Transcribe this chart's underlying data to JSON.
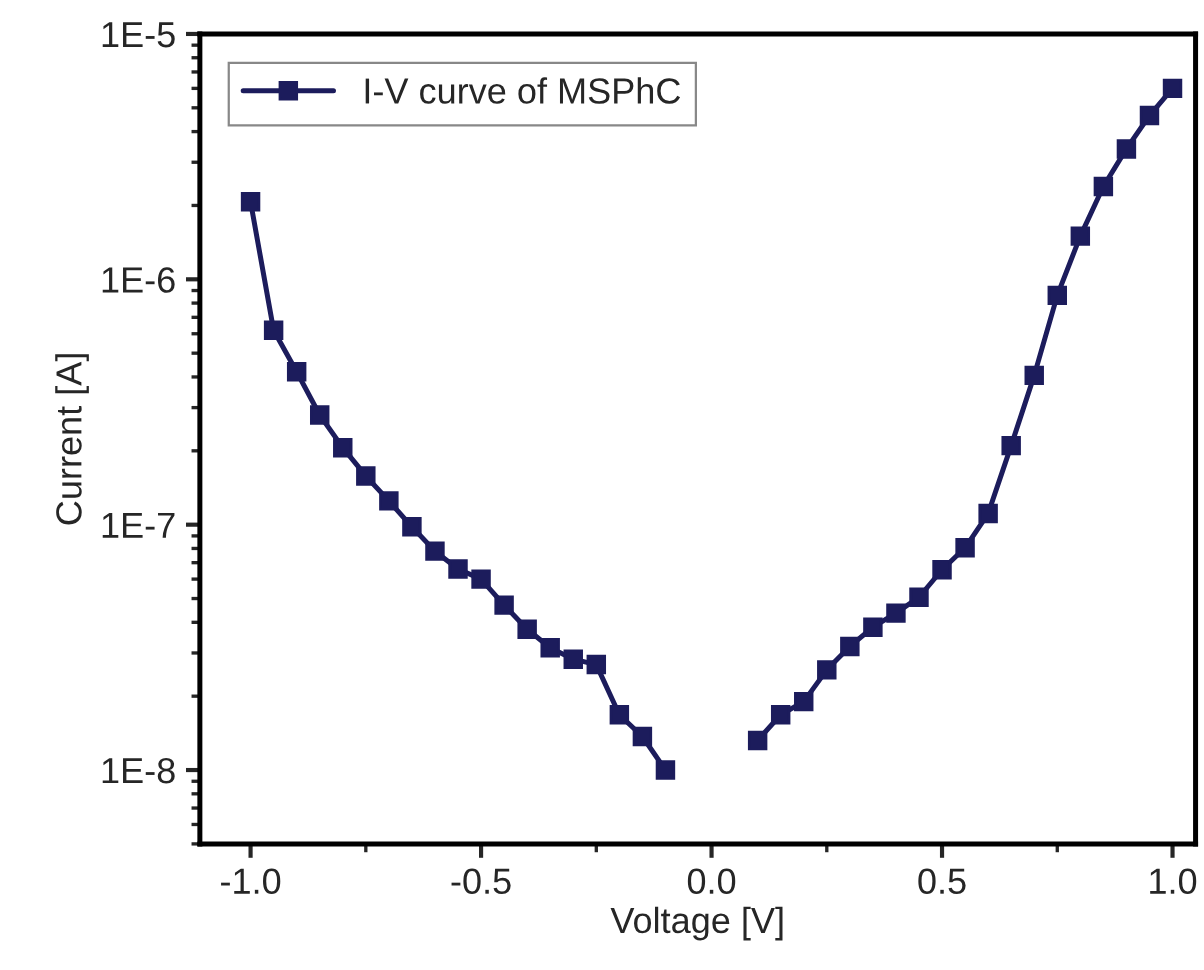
{
  "chart_data": {
    "type": "line",
    "xlabel": "Voltage [V]",
    "ylabel": "Current [A]",
    "x": [
      -1.0,
      -0.95,
      -0.9,
      -0.85,
      -0.8,
      -0.75,
      -0.7,
      -0.65,
      -0.6,
      -0.55,
      -0.5,
      -0.45,
      -0.4,
      -0.35,
      -0.3,
      -0.25,
      -0.2,
      -0.15,
      -0.1,
      0.0,
      0.1,
      0.15,
      0.2,
      0.25,
      0.3,
      0.35,
      0.4,
      0.45,
      0.5,
      0.55,
      0.6,
      0.65,
      0.7,
      0.75,
      0.8,
      0.85,
      0.9,
      0.95,
      1.0
    ],
    "series": [
      {
        "name": "I-V curve of MSPhC",
        "color": "#1c1c5c",
        "values": [
          2.07e-06,
          6.2e-07,
          4.2e-07,
          2.8e-07,
          2.06e-07,
          1.58e-07,
          1.25e-07,
          9.8e-08,
          7.8e-08,
          6.6e-08,
          6e-08,
          4.7e-08,
          3.75e-08,
          3.15e-08,
          2.83e-08,
          2.69e-08,
          1.68e-08,
          1.37e-08,
          1e-08,
          null,
          1.32e-08,
          1.68e-08,
          1.9e-08,
          2.56e-08,
          3.19e-08,
          3.82e-08,
          4.36e-08,
          5.06e-08,
          6.55e-08,
          8.05e-08,
          1.11e-07,
          2.1e-07,
          4.06e-07,
          8.6e-07,
          1.5e-06,
          2.39e-06,
          3.4e-06,
          4.65e-06,
          6e-06
        ]
      }
    ],
    "log": "y",
    "xlim": [
      -1.11,
      1.05
    ],
    "xticks": [
      {
        "value": -1.0,
        "label": "-1.0"
      },
      -0.5,
      {
        "value": 0.0,
        "label": "0.0"
      },
      0.5,
      {
        "value": 1.0,
        "label": "1.0"
      }
    ],
    "ylim": [
      5e-09,
      1e-05
    ],
    "yticks": [
      {
        "value": 1e-08,
        "label": "1E-8"
      },
      {
        "value": 1e-07,
        "label": "1E-7"
      },
      {
        "value": 1e-06,
        "label": "1E-6"
      },
      {
        "value": 1e-05,
        "label": "1E-5"
      }
    ],
    "marker": "square",
    "line_style": "solid",
    "legend": "top left",
    "grid": false
  }
}
